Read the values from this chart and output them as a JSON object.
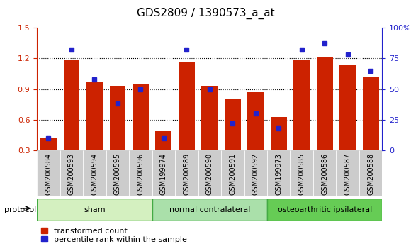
{
  "title": "GDS2809 / 1390573_a_at",
  "samples": [
    "GSM200584",
    "GSM200593",
    "GSM200594",
    "GSM200595",
    "GSM200596",
    "GSM199974",
    "GSM200589",
    "GSM200590",
    "GSM200591",
    "GSM200592",
    "GSM199973",
    "GSM200585",
    "GSM200586",
    "GSM200587",
    "GSM200588"
  ],
  "red_values": [
    0.42,
    1.19,
    0.97,
    0.93,
    0.95,
    0.49,
    1.17,
    0.93,
    0.8,
    0.87,
    0.63,
    1.18,
    1.21,
    1.14,
    1.02
  ],
  "blue_pct": [
    10,
    82,
    58,
    38,
    50,
    10,
    82,
    50,
    22,
    30,
    18,
    82,
    87,
    78,
    65
  ],
  "red_color": "#cc2200",
  "blue_color": "#2222cc",
  "ylim_left": [
    0.3,
    1.5
  ],
  "ylim_right": [
    0,
    100
  ],
  "yticks_left": [
    0.3,
    0.6,
    0.9,
    1.2,
    1.5
  ],
  "yticks_right": [
    0,
    25,
    50,
    75,
    100
  ],
  "groups": [
    {
      "label": "sham",
      "start": 0,
      "end": 5,
      "color": "#d4f0c0"
    },
    {
      "label": "normal contralateral",
      "start": 5,
      "end": 10,
      "color": "#aae0aa"
    },
    {
      "label": "osteoarthritic ipsilateral",
      "start": 10,
      "end": 15,
      "color": "#66cc55"
    }
  ],
  "protocol_label": "protocol",
  "legend_red": "transformed count",
  "legend_blue": "percentile rank within the sample",
  "bar_width": 0.7,
  "bg_color": "#ffffff",
  "tick_label_fontsize": 7,
  "title_fontsize": 11
}
